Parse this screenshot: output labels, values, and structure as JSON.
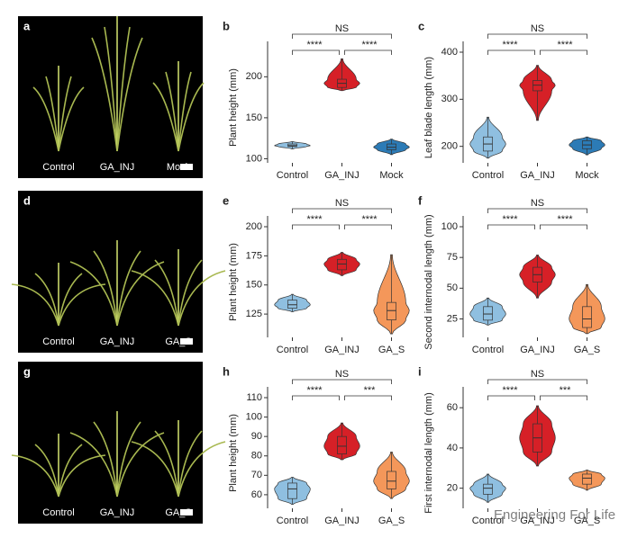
{
  "photos": [
    {
      "panel_label": "a",
      "captions": [
        "Control",
        "GA_INJ",
        "Mock"
      ]
    },
    {
      "panel_label": "d",
      "captions": [
        "Control",
        "GA_INJ",
        "GA_S"
      ]
    },
    {
      "panel_label": "g",
      "captions": [
        "Control",
        "GA_INJ",
        "GA_S"
      ]
    }
  ],
  "chart_data": [
    {
      "type": "violin",
      "panel_label": "b",
      "y_label": "Plant height (mm)",
      "categories": [
        "Control",
        "GA_INJ",
        "Mock"
      ],
      "colors": [
        "#8fbfe0",
        "#d62027",
        "#2c7bb6"
      ],
      "stats": [
        {
          "min": 112,
          "q1": 115,
          "median": 116,
          "q3": 118,
          "max": 121
        },
        {
          "min": 183,
          "q1": 187,
          "median": 192,
          "q3": 197,
          "max": 222
        },
        {
          "min": 105,
          "q1": 111,
          "median": 114,
          "q3": 118,
          "max": 124
        }
      ],
      "ylim": [
        95,
        230
      ],
      "yticks": [
        100,
        150,
        200
      ],
      "comparisons": [
        {
          "groups": [
            "Control",
            "Mock"
          ],
          "label": "NS"
        },
        {
          "groups": [
            "Control",
            "GA_INJ"
          ],
          "label": "****"
        },
        {
          "groups": [
            "GA_INJ",
            "Mock"
          ],
          "label": "****"
        }
      ]
    },
    {
      "type": "violin",
      "panel_label": "c",
      "y_label": "Leaf blade length (mm)",
      "categories": [
        "Control",
        "GA_INJ",
        "Mock"
      ],
      "colors": [
        "#8fbfe0",
        "#d62027",
        "#2c7bb6"
      ],
      "stats": [
        {
          "min": 175,
          "q1": 190,
          "median": 205,
          "q3": 220,
          "max": 262
        },
        {
          "min": 255,
          "q1": 318,
          "median": 330,
          "q3": 340,
          "max": 372
        },
        {
          "min": 182,
          "q1": 195,
          "median": 203,
          "q3": 212,
          "max": 220
        }
      ],
      "ylim": [
        165,
        400
      ],
      "yticks": [
        200,
        300,
        400
      ],
      "comparisons": [
        {
          "groups": [
            "Control",
            "Mock"
          ],
          "label": "NS"
        },
        {
          "groups": [
            "Control",
            "GA_INJ"
          ],
          "label": "****"
        },
        {
          "groups": [
            "GA_INJ",
            "Mock"
          ],
          "label": "****"
        }
      ]
    },
    {
      "type": "violin",
      "panel_label": "e",
      "y_label": "Plant height (mm)",
      "categories": [
        "Control",
        "GA_INJ",
        "GA_S"
      ],
      "colors": [
        "#8fbfe0",
        "#d62027",
        "#f4975a"
      ],
      "stats": [
        {
          "min": 127,
          "q1": 130,
          "median": 133,
          "q3": 137,
          "max": 142
        },
        {
          "min": 158,
          "q1": 163,
          "median": 168,
          "q3": 172,
          "max": 178
        },
        {
          "min": 108,
          "q1": 120,
          "median": 128,
          "q3": 135,
          "max": 176
        }
      ],
      "ylim": [
        105,
        200
      ],
      "yticks": [
        125,
        150,
        175,
        200
      ],
      "comparisons": [
        {
          "groups": [
            "Control",
            "GA_S"
          ],
          "label": "NS"
        },
        {
          "groups": [
            "Control",
            "GA_INJ"
          ],
          "label": "****"
        },
        {
          "groups": [
            "GA_INJ",
            "GA_S"
          ],
          "label": "****"
        }
      ]
    },
    {
      "type": "violin",
      "panel_label": "f",
      "y_label": "Second internodal length (mm)",
      "categories": [
        "Control",
        "GA_INJ",
        "GA_S"
      ],
      "colors": [
        "#8fbfe0",
        "#d62027",
        "#f4975a"
      ],
      "stats": [
        {
          "min": 20,
          "q1": 24,
          "median": 29,
          "q3": 35,
          "max": 42
        },
        {
          "min": 42,
          "q1": 55,
          "median": 61,
          "q3": 67,
          "max": 77
        },
        {
          "min": 13,
          "q1": 18,
          "median": 25,
          "q3": 35,
          "max": 53
        }
      ],
      "ylim": [
        10,
        100
      ],
      "yticks": [
        25,
        50,
        75,
        100
      ],
      "comparisons": [
        {
          "groups": [
            "Control",
            "GA_S"
          ],
          "label": "NS"
        },
        {
          "groups": [
            "Control",
            "GA_INJ"
          ],
          "label": "****"
        },
        {
          "groups": [
            "GA_INJ",
            "GA_S"
          ],
          "label": "****"
        }
      ]
    },
    {
      "type": "violin",
      "panel_label": "h",
      "y_label": "Plant height (mm)",
      "categories": [
        "Control",
        "GA_INJ",
        "GA_S"
      ],
      "colors": [
        "#8fbfe0",
        "#d62027",
        "#f4975a"
      ],
      "stats": [
        {
          "min": 55,
          "q1": 58,
          "median": 63,
          "q3": 66,
          "max": 69
        },
        {
          "min": 78,
          "q1": 81,
          "median": 85,
          "q3": 90,
          "max": 97
        },
        {
          "min": 58,
          "q1": 63,
          "median": 67,
          "q3": 72,
          "max": 82
        }
      ],
      "ylim": [
        53,
        110
      ],
      "yticks": [
        60,
        70,
        80,
        90,
        100,
        110
      ],
      "comparisons": [
        {
          "groups": [
            "Control",
            "GA_S"
          ],
          "label": "NS"
        },
        {
          "groups": [
            "Control",
            "GA_INJ"
          ],
          "label": "****"
        },
        {
          "groups": [
            "GA_INJ",
            "GA_S"
          ],
          "label": "***"
        }
      ]
    },
    {
      "type": "violin",
      "panel_label": "i",
      "y_label": "First internodal length (mm)",
      "categories": [
        "Control",
        "GA_INJ",
        "GA_S"
      ],
      "colors": [
        "#8fbfe0",
        "#d62027",
        "#f4975a"
      ],
      "stats": [
        {
          "min": 13,
          "q1": 17,
          "median": 20,
          "q3": 22,
          "max": 27
        },
        {
          "min": 31,
          "q1": 38,
          "median": 45,
          "q3": 52,
          "max": 61
        },
        {
          "min": 19,
          "q1": 22,
          "median": 25,
          "q3": 27,
          "max": 29
        }
      ],
      "ylim": [
        10,
        65
      ],
      "yticks": [
        20,
        40,
        60
      ],
      "comparisons": [
        {
          "groups": [
            "Control",
            "GA_S"
          ],
          "label": "NS"
        },
        {
          "groups": [
            "Control",
            "GA_INJ"
          ],
          "label": "****"
        },
        {
          "groups": [
            "GA_INJ",
            "GA_S"
          ],
          "label": "***"
        }
      ]
    }
  ],
  "watermark": "Engineering For Life"
}
